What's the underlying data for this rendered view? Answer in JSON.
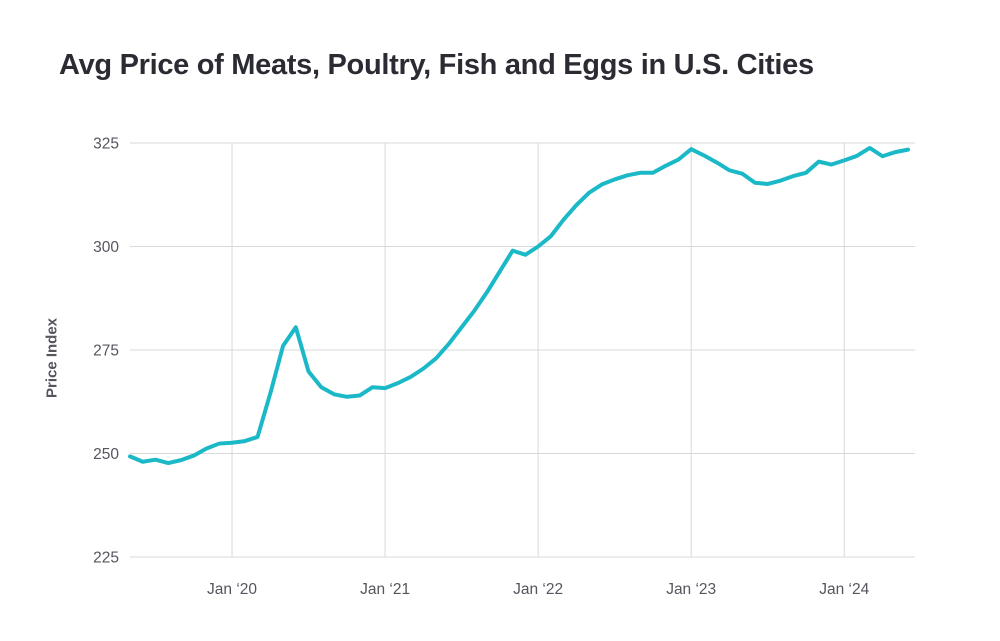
{
  "chart_data": {
    "type": "line",
    "title": "Avg Price of Meats, Poultry, Fish and Eggs in U.S. Cities",
    "ylabel": "Price Index",
    "xlabel": "",
    "legend": "none",
    "grid": "on",
    "ylim": [
      225,
      325
    ],
    "yticks": [
      225,
      250,
      275,
      300,
      325
    ],
    "xticks": [
      {
        "label": "Jan ‘20",
        "month": "2020-01"
      },
      {
        "label": "Jan ‘21",
        "month": "2021-01"
      },
      {
        "label": "Jan ‘22",
        "month": "2022-01"
      },
      {
        "label": "Jan ‘23",
        "month": "2023-01"
      },
      {
        "label": "Jan ‘24",
        "month": "2024-01"
      }
    ],
    "x": [
      "2019-05",
      "2019-06",
      "2019-07",
      "2019-08",
      "2019-09",
      "2019-10",
      "2019-11",
      "2019-12",
      "2020-01",
      "2020-02",
      "2020-03",
      "2020-04",
      "2020-05",
      "2020-06",
      "2020-07",
      "2020-08",
      "2020-09",
      "2020-10",
      "2020-11",
      "2020-12",
      "2021-01",
      "2021-02",
      "2021-03",
      "2021-04",
      "2021-05",
      "2021-06",
      "2021-07",
      "2021-08",
      "2021-09",
      "2021-10",
      "2021-11",
      "2021-12",
      "2022-01",
      "2022-02",
      "2022-03",
      "2022-04",
      "2022-05",
      "2022-06",
      "2022-07",
      "2022-08",
      "2022-09",
      "2022-10",
      "2022-11",
      "2022-12",
      "2023-01",
      "2023-02",
      "2023-03",
      "2023-04",
      "2023-05",
      "2023-06",
      "2023-07",
      "2023-08",
      "2023-09",
      "2023-10",
      "2023-11",
      "2023-12",
      "2024-01",
      "2024-02",
      "2024-03",
      "2024-04",
      "2024-05",
      "2024-06"
    ],
    "series": [
      {
        "name": "Price Index",
        "values": [
          249.3,
          248.0,
          248.5,
          247.7,
          248.4,
          249.5,
          251.2,
          252.4,
          252.6,
          253.0,
          254.0,
          264.5,
          276.0,
          280.5,
          269.8,
          266.0,
          264.3,
          263.7,
          264.0,
          266.0,
          265.8,
          267.0,
          268.5,
          270.5,
          273.0,
          276.5,
          280.5,
          284.5,
          289.0,
          294.0,
          299.0,
          298.0,
          300.0,
          302.5,
          306.5,
          310.0,
          313.0,
          315.0,
          316.2,
          317.2,
          317.8,
          317.8,
          319.5,
          321.0,
          323.5,
          322.0,
          320.3,
          318.4,
          317.6,
          315.4,
          315.1,
          315.9,
          317.0,
          317.8,
          320.5,
          319.8,
          320.8,
          321.9,
          323.8,
          321.8,
          322.8,
          323.4
        ]
      }
    ]
  },
  "colors": {
    "line": "#1BB9C7",
    "grid": "#D9D9D9",
    "tick_text": "#55555E",
    "title_text": "#2B2B33",
    "background": "#FFFFFF"
  }
}
